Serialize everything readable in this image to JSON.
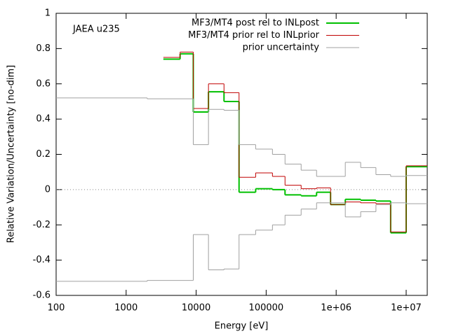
{
  "chart_data": {
    "type": "step",
    "annotation": "JAEA u235",
    "x_label": "Energy [eV]",
    "y_label": "Relative Variation/Uncertainty [no-dim]",
    "xlim": [
      100,
      20000000
    ],
    "ylim": [
      -0.6,
      1
    ],
    "x_log": true,
    "zero_axis": true,
    "legend": "top-right",
    "xticks": [
      100,
      1000,
      10000,
      100000,
      {
        "value": 1000000,
        "label": "1e+06"
      },
      {
        "value": 10000000,
        "label": "1e+07"
      }
    ],
    "yticks": [
      1,
      0.8,
      0.6,
      0.4,
      0.2,
      0,
      -0.2,
      -0.4,
      -0.6
    ],
    "series": [
      {
        "name": "MF3/MT4 post rel to INLpost",
        "color": "#00c000",
        "width": 2,
        "mirror": false,
        "edges": [
          3400,
          5900,
          9100,
          15000,
          25000,
          41000,
          70800,
          123000,
          186000,
          316000,
          525000,
          832000,
          1350000,
          2240000,
          3700000,
          6000000,
          10000000,
          20000000
        ],
        "values": [
          0.74,
          0.77,
          0.44,
          0.555,
          0.5,
          -0.015,
          0.005,
          0.0,
          -0.03,
          -0.035,
          -0.015,
          -0.085,
          -0.055,
          -0.06,
          -0.065,
          -0.245,
          0.13
        ]
      },
      {
        "name": "MF3/MT4 prior rel to INLprior",
        "color": "#c00000",
        "width": 1,
        "mirror": false,
        "edges": [
          3400,
          5900,
          9100,
          15000,
          25000,
          41000,
          70800,
          123000,
          186000,
          316000,
          525000,
          832000,
          1350000,
          2240000,
          3700000,
          6000000,
          10000000,
          20000000
        ],
        "values": [
          0.75,
          0.78,
          0.46,
          0.6,
          0.55,
          0.07,
          0.095,
          0.075,
          0.025,
          0.005,
          0.01,
          -0.085,
          -0.07,
          -0.075,
          -0.08,
          -0.24,
          0.135
        ]
      },
      {
        "name": "prior uncertainty",
        "color": "#a0a0a0",
        "width": 1,
        "mirror": true,
        "edges": [
          100,
          2000,
          9100,
          15000,
          25000,
          41000,
          70800,
          123000,
          186000,
          316000,
          525000,
          1350000,
          2240000,
          3700000,
          6000000,
          10000000,
          20000000
        ],
        "values": [
          0.52,
          0.515,
          0.255,
          0.455,
          0.45,
          0.255,
          0.23,
          0.2,
          0.145,
          0.11,
          0.075,
          0.155,
          0.125,
          0.085,
          0.075,
          0.08
        ]
      }
    ]
  }
}
